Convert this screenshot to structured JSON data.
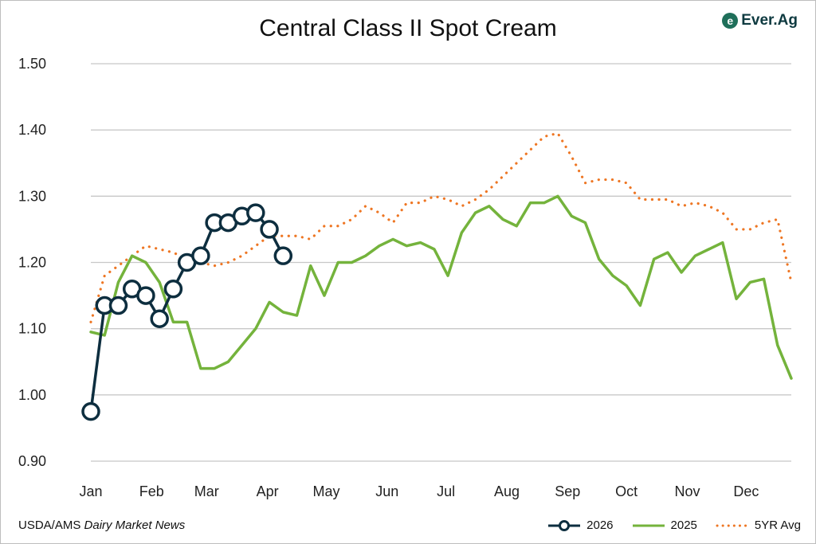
{
  "chart_data": {
    "type": "line",
    "title": "Central Class II Spot Cream",
    "xlabel": "",
    "ylabel": "",
    "ylim": [
      0.9,
      1.5
    ],
    "yticks": [
      "0.90",
      "1.00",
      "1.10",
      "1.20",
      "1.30",
      "1.40",
      "1.50"
    ],
    "x_unit": "week of year",
    "x_tick_labels": [
      "Jan",
      "Feb",
      "Mar",
      "Apr",
      "May",
      "Jun",
      "Jul",
      "Aug",
      "Sep",
      "Oct",
      "Nov",
      "Dec"
    ],
    "grid": true,
    "legend_position": "bottom-right",
    "series": [
      {
        "name": "2026",
        "color": "#0d2e3f",
        "style": "solid-circles",
        "values": [
          0.975,
          1.135,
          1.135,
          1.16,
          1.15,
          1.115,
          1.16,
          1.2,
          1.21,
          1.26,
          1.26,
          1.27,
          1.275,
          1.25,
          1.21
        ]
      },
      {
        "name": "2025",
        "color": "#74b33c",
        "style": "solid",
        "values": [
          1.095,
          1.09,
          1.17,
          1.21,
          1.2,
          1.17,
          1.11,
          1.11,
          1.04,
          1.04,
          1.05,
          1.075,
          1.1,
          1.14,
          1.125,
          1.12,
          1.195,
          1.15,
          1.2,
          1.2,
          1.21,
          1.225,
          1.235,
          1.225,
          1.23,
          1.22,
          1.18,
          1.245,
          1.275,
          1.285,
          1.265,
          1.255,
          1.29,
          1.29,
          1.3,
          1.27,
          1.26,
          1.205,
          1.18,
          1.165,
          1.135,
          1.205,
          1.215,
          1.185,
          1.21,
          1.22,
          1.23,
          1.145,
          1.17,
          1.175,
          1.075,
          1.025
        ]
      },
      {
        "name": "5YR Avg",
        "color": "#ee7623",
        "style": "dotted",
        "values": [
          1.11,
          1.18,
          1.195,
          1.21,
          1.225,
          1.22,
          1.215,
          1.205,
          1.2,
          1.195,
          1.2,
          1.21,
          1.225,
          1.24,
          1.24,
          1.24,
          1.235,
          1.255,
          1.255,
          1.265,
          1.285,
          1.275,
          1.26,
          1.29,
          1.29,
          1.3,
          1.295,
          1.285,
          1.295,
          1.31,
          1.33,
          1.35,
          1.37,
          1.39,
          1.395,
          1.36,
          1.32,
          1.325,
          1.325,
          1.32,
          1.295,
          1.295,
          1.295,
          1.285,
          1.29,
          1.285,
          1.275,
          1.25,
          1.25,
          1.26,
          1.265,
          1.17
        ]
      }
    ]
  },
  "source": {
    "prefix": "USDA/AMS ",
    "italic": "Dairy Market News"
  },
  "logo": {
    "text": "Ever.Ag"
  }
}
